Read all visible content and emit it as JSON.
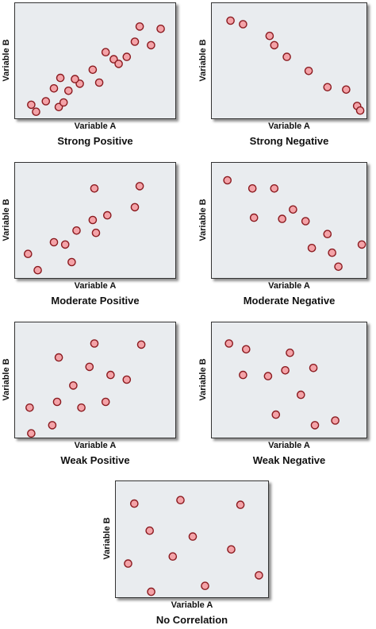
{
  "colors": {
    "point_fill": "#f4a3a8",
    "point_stroke": "#8b1a1f",
    "plot_bg": "#e9ecef"
  },
  "chart_data": [
    {
      "type": "scatter",
      "title": "Strong Positive",
      "xlabel": "Variable A",
      "ylabel": "Variable B",
      "xlim": [
        0,
        100
      ],
      "ylim": [
        0,
        100
      ],
      "grid": false,
      "points": [
        {
          "x": 10,
          "y": 13
        },
        {
          "x": 13,
          "y": 7
        },
        {
          "x": 19,
          "y": 16
        },
        {
          "x": 24,
          "y": 27
        },
        {
          "x": 28,
          "y": 36
        },
        {
          "x": 27,
          "y": 11
        },
        {
          "x": 30,
          "y": 15
        },
        {
          "x": 33,
          "y": 25
        },
        {
          "x": 40,
          "y": 31
        },
        {
          "x": 37,
          "y": 35
        },
        {
          "x": 48,
          "y": 43
        },
        {
          "x": 52,
          "y": 32
        },
        {
          "x": 56,
          "y": 58
        },
        {
          "x": 61,
          "y": 52
        },
        {
          "x": 64,
          "y": 48
        },
        {
          "x": 69,
          "y": 54
        },
        {
          "x": 74,
          "y": 67
        },
        {
          "x": 77,
          "y": 80
        },
        {
          "x": 84,
          "y": 64
        },
        {
          "x": 90,
          "y": 78
        }
      ]
    },
    {
      "type": "scatter",
      "title": "Strong Negative",
      "xlabel": "Variable A",
      "ylabel": "Variable B",
      "xlim": [
        0,
        100
      ],
      "ylim": [
        0,
        100
      ],
      "grid": false,
      "points": [
        {
          "x": 12,
          "y": 85
        },
        {
          "x": 20,
          "y": 82
        },
        {
          "x": 37,
          "y": 72
        },
        {
          "x": 40,
          "y": 64
        },
        {
          "x": 48,
          "y": 54
        },
        {
          "x": 62,
          "y": 42
        },
        {
          "x": 74,
          "y": 28
        },
        {
          "x": 86,
          "y": 26
        },
        {
          "x": 93,
          "y": 12
        },
        {
          "x": 95,
          "y": 8
        }
      ]
    },
    {
      "type": "scatter",
      "title": "Moderate Positive",
      "xlabel": "Variable A",
      "ylabel": "Variable B",
      "xlim": [
        0,
        100
      ],
      "ylim": [
        0,
        100
      ],
      "grid": false,
      "points": [
        {
          "x": 8,
          "y": 22
        },
        {
          "x": 14,
          "y": 8
        },
        {
          "x": 24,
          "y": 32
        },
        {
          "x": 31,
          "y": 30
        },
        {
          "x": 35,
          "y": 15
        },
        {
          "x": 38,
          "y": 42
        },
        {
          "x": 48,
          "y": 51
        },
        {
          "x": 50,
          "y": 40
        },
        {
          "x": 49,
          "y": 78
        },
        {
          "x": 57,
          "y": 55
        },
        {
          "x": 74,
          "y": 62
        },
        {
          "x": 77,
          "y": 80
        }
      ]
    },
    {
      "type": "scatter",
      "title": "Moderate Negative",
      "xlabel": "Variable A",
      "ylabel": "Variable B",
      "xlim": [
        0,
        100
      ],
      "ylim": [
        0,
        100
      ],
      "grid": false,
      "points": [
        {
          "x": 10,
          "y": 85
        },
        {
          "x": 26,
          "y": 78
        },
        {
          "x": 40,
          "y": 78
        },
        {
          "x": 27,
          "y": 53
        },
        {
          "x": 45,
          "y": 52
        },
        {
          "x": 52,
          "y": 60
        },
        {
          "x": 60,
          "y": 50
        },
        {
          "x": 64,
          "y": 27
        },
        {
          "x": 74,
          "y": 39
        },
        {
          "x": 77,
          "y": 23
        },
        {
          "x": 81,
          "y": 11
        },
        {
          "x": 96,
          "y": 30
        }
      ]
    },
    {
      "type": "scatter",
      "title": "Weak Positive",
      "xlabel": "Variable A",
      "ylabel": "Variable B",
      "xlim": [
        0,
        100
      ],
      "ylim": [
        0,
        100
      ],
      "grid": false,
      "points": [
        {
          "x": 9,
          "y": 27
        },
        {
          "x": 10,
          "y": 5
        },
        {
          "x": 23,
          "y": 12
        },
        {
          "x": 27,
          "y": 70
        },
        {
          "x": 26,
          "y": 32
        },
        {
          "x": 36,
          "y": 46
        },
        {
          "x": 41,
          "y": 27
        },
        {
          "x": 46,
          "y": 62
        },
        {
          "x": 49,
          "y": 82
        },
        {
          "x": 56,
          "y": 32
        },
        {
          "x": 59,
          "y": 55
        },
        {
          "x": 69,
          "y": 51
        },
        {
          "x": 78,
          "y": 81
        }
      ]
    },
    {
      "type": "scatter",
      "title": "Weak Negative",
      "xlabel": "Variable A",
      "ylabel": "Variable B",
      "xlim": [
        0,
        100
      ],
      "ylim": [
        0,
        100
      ],
      "grid": false,
      "points": [
        {
          "x": 11,
          "y": 82
        },
        {
          "x": 22,
          "y": 77
        },
        {
          "x": 20,
          "y": 55
        },
        {
          "x": 36,
          "y": 54
        },
        {
          "x": 41,
          "y": 21
        },
        {
          "x": 47,
          "y": 59
        },
        {
          "x": 50,
          "y": 74
        },
        {
          "x": 57,
          "y": 38
        },
        {
          "x": 65,
          "y": 61
        },
        {
          "x": 66,
          "y": 12
        },
        {
          "x": 79,
          "y": 16
        }
      ]
    },
    {
      "type": "scatter",
      "title": "No Correlation",
      "xlabel": "Variable A",
      "ylabel": "Variable B",
      "xlim": [
        0,
        100
      ],
      "ylim": [
        0,
        100
      ],
      "grid": false,
      "points": [
        {
          "x": 12,
          "y": 81
        },
        {
          "x": 42,
          "y": 84
        },
        {
          "x": 81,
          "y": 80
        },
        {
          "x": 22,
          "y": 58
        },
        {
          "x": 50,
          "y": 53
        },
        {
          "x": 75,
          "y": 42
        },
        {
          "x": 8,
          "y": 30
        },
        {
          "x": 37,
          "y": 36
        },
        {
          "x": 93,
          "y": 20
        },
        {
          "x": 23,
          "y": 6
        },
        {
          "x": 58,
          "y": 11
        }
      ]
    }
  ]
}
